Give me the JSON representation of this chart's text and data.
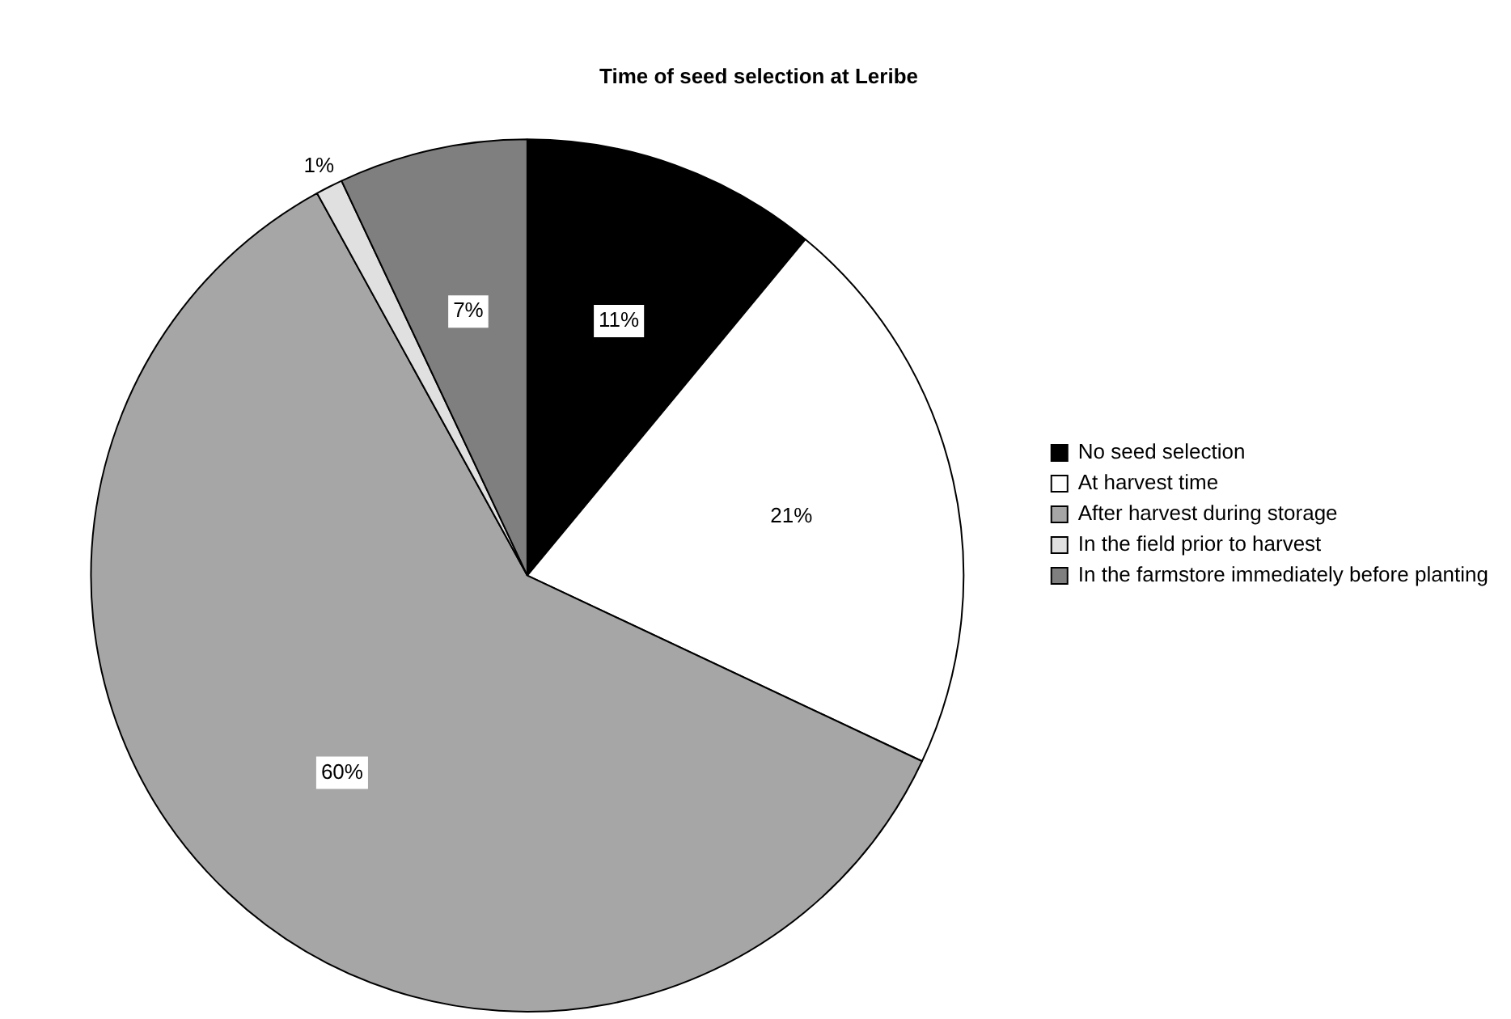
{
  "chart_data": {
    "type": "pie",
    "title": "Time of seed selection at Leribe",
    "categories": [
      "No seed selection",
      "At harvest time",
      "After harvest during storage",
      "In the field prior to harvest",
      "In the farmstore immediately before planting"
    ],
    "values": [
      11,
      21,
      60,
      1,
      7
    ],
    "colors": [
      "#000000",
      "#ffffff",
      "#a6a6a6",
      "#e0e0e0",
      "#7f7f7f"
    ],
    "value_labels": [
      "11%",
      "21%",
      "60%",
      "1%",
      "7%"
    ],
    "legend": "right"
  }
}
